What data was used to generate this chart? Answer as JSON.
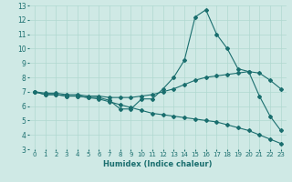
{
  "xlabel": "Humidex (Indice chaleur)",
  "xlim": [
    -0.5,
    23.5
  ],
  "ylim": [
    3,
    13
  ],
  "xticks": [
    0,
    1,
    2,
    3,
    4,
    5,
    6,
    7,
    8,
    9,
    10,
    11,
    12,
    13,
    14,
    15,
    16,
    17,
    18,
    19,
    20,
    21,
    22,
    23
  ],
  "yticks": [
    3,
    4,
    5,
    6,
    7,
    8,
    9,
    10,
    11,
    12,
    13
  ],
  "bg_color": "#cfe9e5",
  "grid_color": "#b0d8d0",
  "line_color": "#1a6e6e",
  "line1_x": [
    0,
    1,
    2,
    3,
    4,
    5,
    6,
    7,
    8,
    9,
    10,
    11,
    12,
    13,
    14,
    15,
    16,
    17,
    18,
    19,
    20,
    21,
    22,
    23
  ],
  "line1_y": [
    7.0,
    6.8,
    6.8,
    6.7,
    6.7,
    6.6,
    6.6,
    6.4,
    5.8,
    5.8,
    6.5,
    6.5,
    7.2,
    8.0,
    9.2,
    12.2,
    12.7,
    11.0,
    10.0,
    8.6,
    8.4,
    6.7,
    5.3,
    4.3
  ],
  "line2_x": [
    0,
    1,
    2,
    3,
    4,
    5,
    6,
    7,
    8,
    9,
    10,
    11,
    12,
    13,
    14,
    15,
    16,
    17,
    18,
    19,
    20,
    21,
    22,
    23
  ],
  "line2_y": [
    7.0,
    6.8,
    6.8,
    6.7,
    6.7,
    6.6,
    6.5,
    6.3,
    6.1,
    5.9,
    5.7,
    5.5,
    5.4,
    5.3,
    5.2,
    5.1,
    5.0,
    4.9,
    4.7,
    4.5,
    4.3,
    4.0,
    3.7,
    3.4
  ],
  "line3_x": [
    0,
    1,
    2,
    3,
    4,
    5,
    6,
    7,
    8,
    9,
    10,
    11,
    12,
    13,
    14,
    15,
    16,
    17,
    18,
    19,
    20,
    21,
    22,
    23
  ],
  "line3_y": [
    7.0,
    6.9,
    6.9,
    6.8,
    6.8,
    6.7,
    6.7,
    6.6,
    6.6,
    6.6,
    6.7,
    6.8,
    7.0,
    7.2,
    7.5,
    7.8,
    8.0,
    8.1,
    8.2,
    8.3,
    8.4,
    8.3,
    7.8,
    7.2
  ]
}
